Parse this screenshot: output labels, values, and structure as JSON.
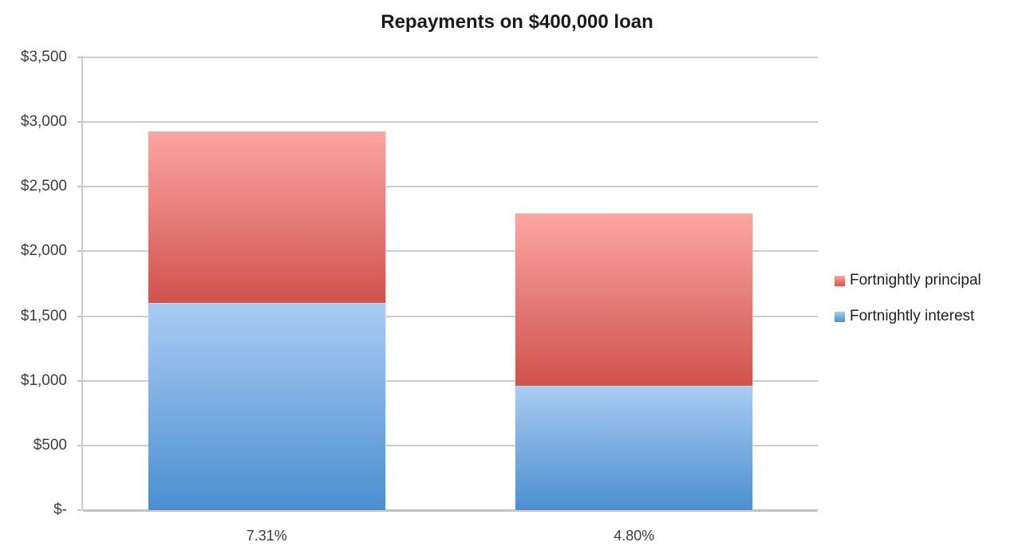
{
  "chart_data": {
    "type": "bar",
    "stacked": true,
    "title": "Repayments on $400,000 loan",
    "categories": [
      "7.31%",
      "4.80%"
    ],
    "series": [
      {
        "name": "Fortnightly interest",
        "values": [
          1600,
          960
        ],
        "color_top": "#A9CCF3",
        "color_bottom": "#4D8ECF"
      },
      {
        "name": "Fortnightly principal",
        "values": [
          1330,
          1330
        ],
        "color_top": "#FBA6A3",
        "color_bottom": "#D0524D"
      }
    ],
    "legend": {
      "position": "right",
      "items": [
        "Fortnightly principal",
        "Fortnightly interest"
      ]
    },
    "xlabel": "",
    "ylabel": "",
    "ylim": [
      0,
      3500
    ],
    "yticks": [
      {
        "label": "$-",
        "value": 0
      },
      {
        "label": "$500",
        "value": 500
      },
      {
        "label": "$1,000",
        "value": 1000
      },
      {
        "label": "$1,500",
        "value": 1500
      },
      {
        "label": "$2,000",
        "value": 2000
      },
      {
        "label": "$2,500",
        "value": 2500
      },
      {
        "label": "$3,000",
        "value": 3000
      },
      {
        "label": "$3,500",
        "value": 3500
      }
    ],
    "grid": true,
    "colors": {
      "gridline": "#CCCCCC",
      "axis_line": "#CCCCCC",
      "zero_line": "#C0C0C0",
      "label_text": "#3D3D3D",
      "title_text": "#1B1B1B"
    }
  }
}
